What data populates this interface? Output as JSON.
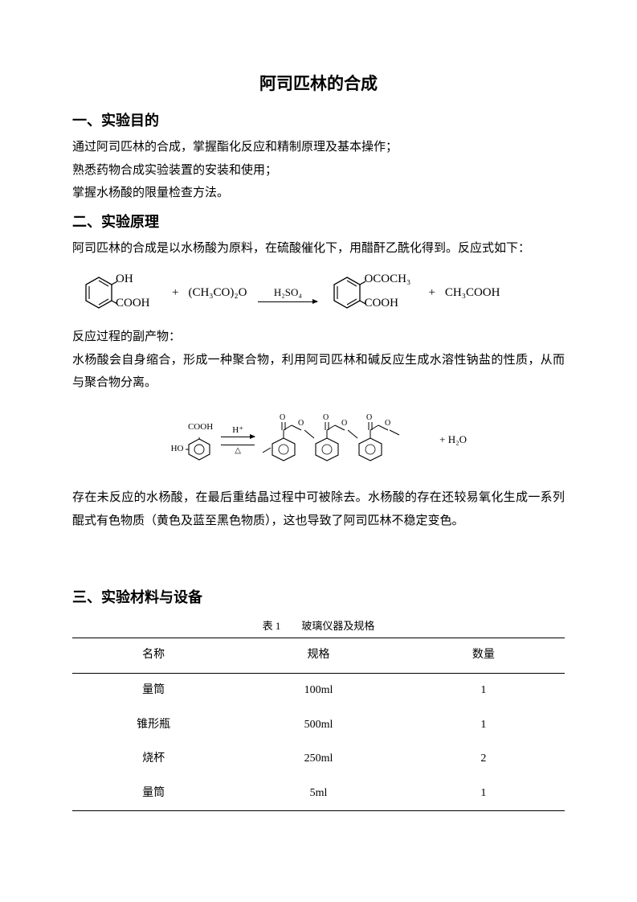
{
  "title": "阿司匹林的合成",
  "section1": {
    "heading": "一、实验目的",
    "p1": "通过阿司匹林的合成，掌握酯化反应和精制原理及基本操作；",
    "p2": "熟悉药物合成实验装置的安装和使用；",
    "p3": "掌握水杨酸的限量检查方法。"
  },
  "section2": {
    "heading": "二、实验原理",
    "p1": "阿司匹林的合成是以水杨酸为原料，在硫酸催化下，用醋酐乙酰化得到。反应式如下：",
    "reaction1": {
      "r1_sub1": "OH",
      "r1_sub2": "COOH",
      "plus1": "+",
      "reagent": "(CH₃CO)₂O",
      "catalyst": "H₂SO₄",
      "p1_sub1": "OCOCH₃",
      "p1_sub2": "COOH",
      "plus2": "+",
      "product2": "CH₃COOH"
    },
    "p2": "反应过程的副产物：",
    "p3": "水杨酸会自身缩合，形成一种聚合物，利用阿司匹林和碱反应生成水溶性钠盐的性质，从而与聚合物分离。",
    "reaction2": {
      "left_label": "COOH",
      "left_oh": "HO",
      "arrow_top": "H⁺",
      "arrow_bot": "△",
      "plus_h2o": "+ H₂O"
    },
    "p4": "存在未反应的水杨酸，在最后重结晶过程中可被除去。水杨酸的存在还较易氧化生成一系列醌式有色物质（黄色及蓝至黑色物质），这也导致了阿司匹林不稳定变色。"
  },
  "section3": {
    "heading": "三、实验材料与设备",
    "table": {
      "caption": "表 1　　玻璃仪器及规格",
      "headers": [
        "名称",
        "规格",
        "数量"
      ],
      "rows": [
        [
          "量筒",
          "100ml",
          "1"
        ],
        [
          "锥形瓶",
          "500ml",
          "1"
        ],
        [
          "烧杯",
          "250ml",
          "2"
        ],
        [
          "量筒",
          "5ml",
          "1"
        ]
      ]
    }
  },
  "colors": {
    "text": "#000000",
    "background": "#ffffff",
    "border": "#000000"
  }
}
